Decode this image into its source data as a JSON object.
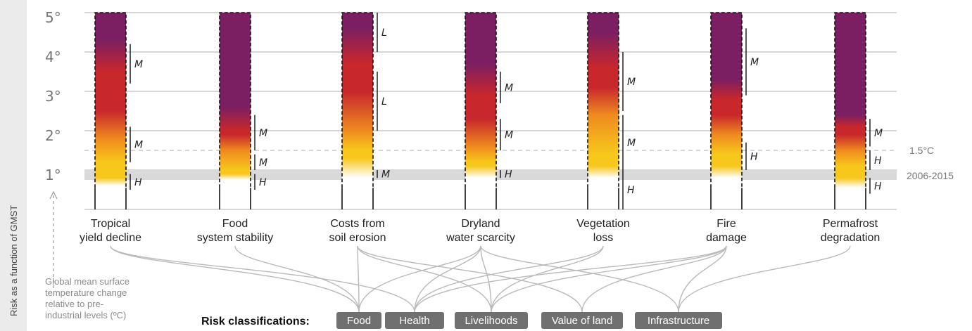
{
  "side_label": "Risk as a function of GMST",
  "axis": {
    "ticks": [
      "1°",
      "2°",
      "3°",
      "4°",
      "5°"
    ],
    "note_lines": [
      "Global mean surface",
      "temperature change",
      "relative to pre-",
      "industrial levels (ºC)"
    ]
  },
  "reference": {
    "line_label": "1.5°C",
    "band_label": "2006-2015"
  },
  "colors": {
    "white": "#ffffff",
    "yellow": "#f7c81b",
    "orange": "#ef8a1f",
    "red": "#c8272c",
    "purple": "#7b1f62",
    "gray_band": "#d9d9d9",
    "category_box": "#707070"
  },
  "hazards": [
    {
      "name_lines": [
        "Tropical",
        "yield decline"
      ],
      "transitions": [
        {
          "from": "white",
          "to": "yellow",
          "start": 0.6,
          "end": 0.8
        },
        {
          "from": "yellow",
          "to": "orange",
          "start": 1.2,
          "end": 1.8
        },
        {
          "from": "orange",
          "to": "red",
          "start": 1.8,
          "end": 2.5
        },
        {
          "from": "red",
          "to": "purple",
          "start": 3.5,
          "end": 4.3
        }
      ],
      "confidence": [
        {
          "label": "H",
          "from": 0.5,
          "to": 0.9
        },
        {
          "label": "M",
          "from": 1.2,
          "to": 2.1
        },
        {
          "label": "M",
          "from": 3.2,
          "to": 4.2
        }
      ]
    },
    {
      "name_lines": [
        "Food",
        "system stability"
      ],
      "transitions": [
        {
          "from": "white",
          "to": "yellow",
          "start": 0.75,
          "end": 0.9
        },
        {
          "from": "yellow",
          "to": "orange",
          "start": 1.0,
          "end": 1.5
        },
        {
          "from": "orange",
          "to": "red",
          "start": 1.5,
          "end": 1.9
        },
        {
          "from": "red",
          "to": "purple",
          "start": 2.0,
          "end": 2.6
        }
      ],
      "confidence": [
        {
          "label": "H",
          "from": 0.5,
          "to": 0.9
        },
        {
          "label": "M",
          "from": 1.0,
          "to": 1.4
        },
        {
          "label": "M",
          "from": 1.5,
          "to": 2.4
        }
      ]
    },
    {
      "name_lines": [
        "Costs from",
        "soil erosion"
      ],
      "transitions": [
        {
          "from": "white",
          "to": "yellow",
          "start": 0.8,
          "end": 1.3
        },
        {
          "from": "yellow",
          "to": "orange",
          "start": 1.5,
          "end": 2.0
        },
        {
          "from": "orange",
          "to": "red",
          "start": 2.0,
          "end": 3.0
        },
        {
          "from": "red",
          "to": "purple",
          "start": 3.7,
          "end": 4.6
        }
      ],
      "confidence": [
        {
          "label": "M",
          "from": 0.8,
          "to": 1.0
        },
        {
          "label": "L",
          "from": 2.0,
          "to": 3.5
        },
        {
          "label": "L",
          "from": 4.0,
          "to": 5.0
        }
      ]
    },
    {
      "name_lines": [
        "Dryland",
        "water scarcity"
      ],
      "transitions": [
        {
          "from": "white",
          "to": "yellow",
          "start": 0.8,
          "end": 1.1
        },
        {
          "from": "yellow",
          "to": "orange",
          "start": 1.2,
          "end": 1.6
        },
        {
          "from": "orange",
          "to": "red",
          "start": 1.6,
          "end": 2.3
        },
        {
          "from": "red",
          "to": "purple",
          "start": 2.9,
          "end": 3.7
        }
      ],
      "confidence": [
        {
          "label": "H",
          "from": 0.8,
          "to": 1.0
        },
        {
          "label": "M",
          "from": 1.5,
          "to": 2.3
        },
        {
          "label": "M",
          "from": 2.7,
          "to": 3.5
        }
      ]
    },
    {
      "name_lines": [
        "Vegetation",
        "loss"
      ],
      "transitions": [
        {
          "from": "white",
          "to": "yellow",
          "start": 0.8,
          "end": 1.1
        },
        {
          "from": "yellow",
          "to": "orange",
          "start": 1.4,
          "end": 2.4
        },
        {
          "from": "orange",
          "to": "red",
          "start": 2.4,
          "end": 3.1
        },
        {
          "from": "red",
          "to": "purple",
          "start": 3.6,
          "end": 4.5
        }
      ],
      "confidence": [
        {
          "label": "H",
          "from": 0.0,
          "to": 1.0
        },
        {
          "label": "M",
          "from": 1.0,
          "to": 2.4
        },
        {
          "label": "M",
          "from": 2.5,
          "to": 4.0
        }
      ]
    },
    {
      "name_lines": [
        "Fire",
        "damage"
      ],
      "transitions": [
        {
          "from": "white",
          "to": "yellow",
          "start": 0.8,
          "end": 1.1
        },
        {
          "from": "yellow",
          "to": "orange",
          "start": 1.4,
          "end": 1.9
        },
        {
          "from": "orange",
          "to": "red",
          "start": 1.9,
          "end": 2.4
        },
        {
          "from": "red",
          "to": "purple",
          "start": 2.8,
          "end": 3.3
        }
      ],
      "confidence": [
        {
          "label": "H",
          "from": 1.0,
          "to": 1.7
        },
        {
          "label": "M",
          "from": 2.9,
          "to": 4.6
        }
      ]
    },
    {
      "name_lines": [
        "Permafrost",
        "degradation"
      ],
      "transitions": [
        {
          "from": "white",
          "to": "yellow",
          "start": 0.5,
          "end": 0.8
        },
        {
          "from": "yellow",
          "to": "orange",
          "start": 1.1,
          "end": 1.5
        },
        {
          "from": "orange",
          "to": "red",
          "start": 1.5,
          "end": 1.9
        },
        {
          "from": "red",
          "to": "purple",
          "start": 2.1,
          "end": 2.4
        }
      ],
      "confidence": [
        {
          "label": "H",
          "from": 0.4,
          "to": 0.8
        },
        {
          "label": "H",
          "from": 1.0,
          "to": 1.5
        },
        {
          "label": "M",
          "from": 1.6,
          "to": 2.3
        }
      ]
    }
  ],
  "legend": {
    "title": "Risk classifications:",
    "categories": [
      "Food",
      "Health",
      "Livelihoods",
      "Value of land",
      "Infrastructure"
    ]
  },
  "links": [
    {
      "hazard": 0,
      "category": 0
    },
    {
      "hazard": 0,
      "category": 1
    },
    {
      "hazard": 1,
      "category": 0
    },
    {
      "hazard": 2,
      "category": 0
    },
    {
      "hazard": 2,
      "category": 2
    },
    {
      "hazard": 2,
      "category": 3
    },
    {
      "hazard": 3,
      "category": 0
    },
    {
      "hazard": 3,
      "category": 1
    },
    {
      "hazard": 3,
      "category": 2
    },
    {
      "hazard": 3,
      "category": 4
    },
    {
      "hazard": 4,
      "category": 1
    },
    {
      "hazard": 4,
      "category": 2
    },
    {
      "hazard": 5,
      "category": 1
    },
    {
      "hazard": 5,
      "category": 2
    },
    {
      "hazard": 5,
      "category": 3
    },
    {
      "hazard": 5,
      "category": 4
    },
    {
      "hazard": 6,
      "category": 4
    }
  ]
}
